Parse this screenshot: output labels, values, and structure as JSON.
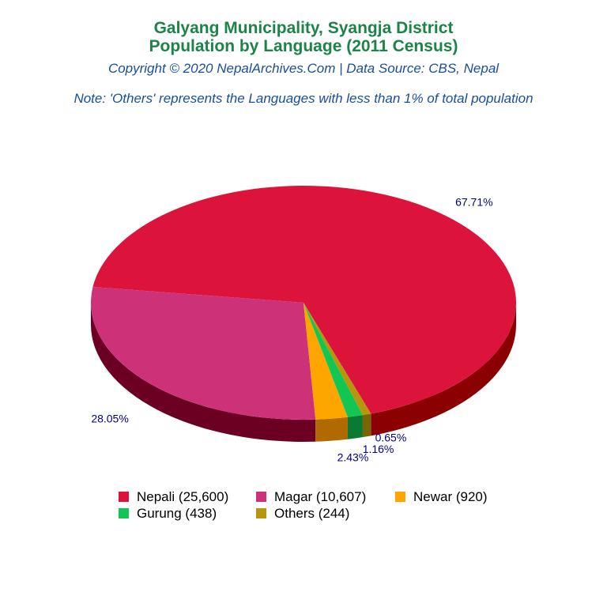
{
  "title_line1": "Galyang Municipality, Syangja District",
  "title_line2": "Population by Language (2011 Census)",
  "copyright": "Copyright © 2020 NepalArchives.Com | Data Source: CBS, Nepal",
  "note": "Note: 'Others' represents the Languages with less than 1% of total population",
  "chart_data": {
    "type": "pie",
    "title": "Population by Language (2011 Census)",
    "categories": [
      "Nepali",
      "Magar",
      "Newar",
      "Gurung",
      "Others"
    ],
    "values": [
      25600,
      10607,
      920,
      438,
      244
    ],
    "percent_labels": [
      "67.71%",
      "28.05%",
      "2.43%",
      "1.16%",
      "0.65%"
    ],
    "colors": [
      "#dc143c",
      "#cd3278",
      "#ffa500",
      "#11c653",
      "#b8960c"
    ],
    "side_colors": [
      "#8b0000",
      "#6b0022",
      "#b06a00",
      "#0a7a33",
      "#7a6405"
    ],
    "legend_labels": [
      "Nepali (25,600)",
      "Magar (10,607)",
      "Newar (920)",
      "Gurung (438)",
      "Others (244)"
    ],
    "label_color": "#00008b",
    "legend_position": "bottom"
  }
}
